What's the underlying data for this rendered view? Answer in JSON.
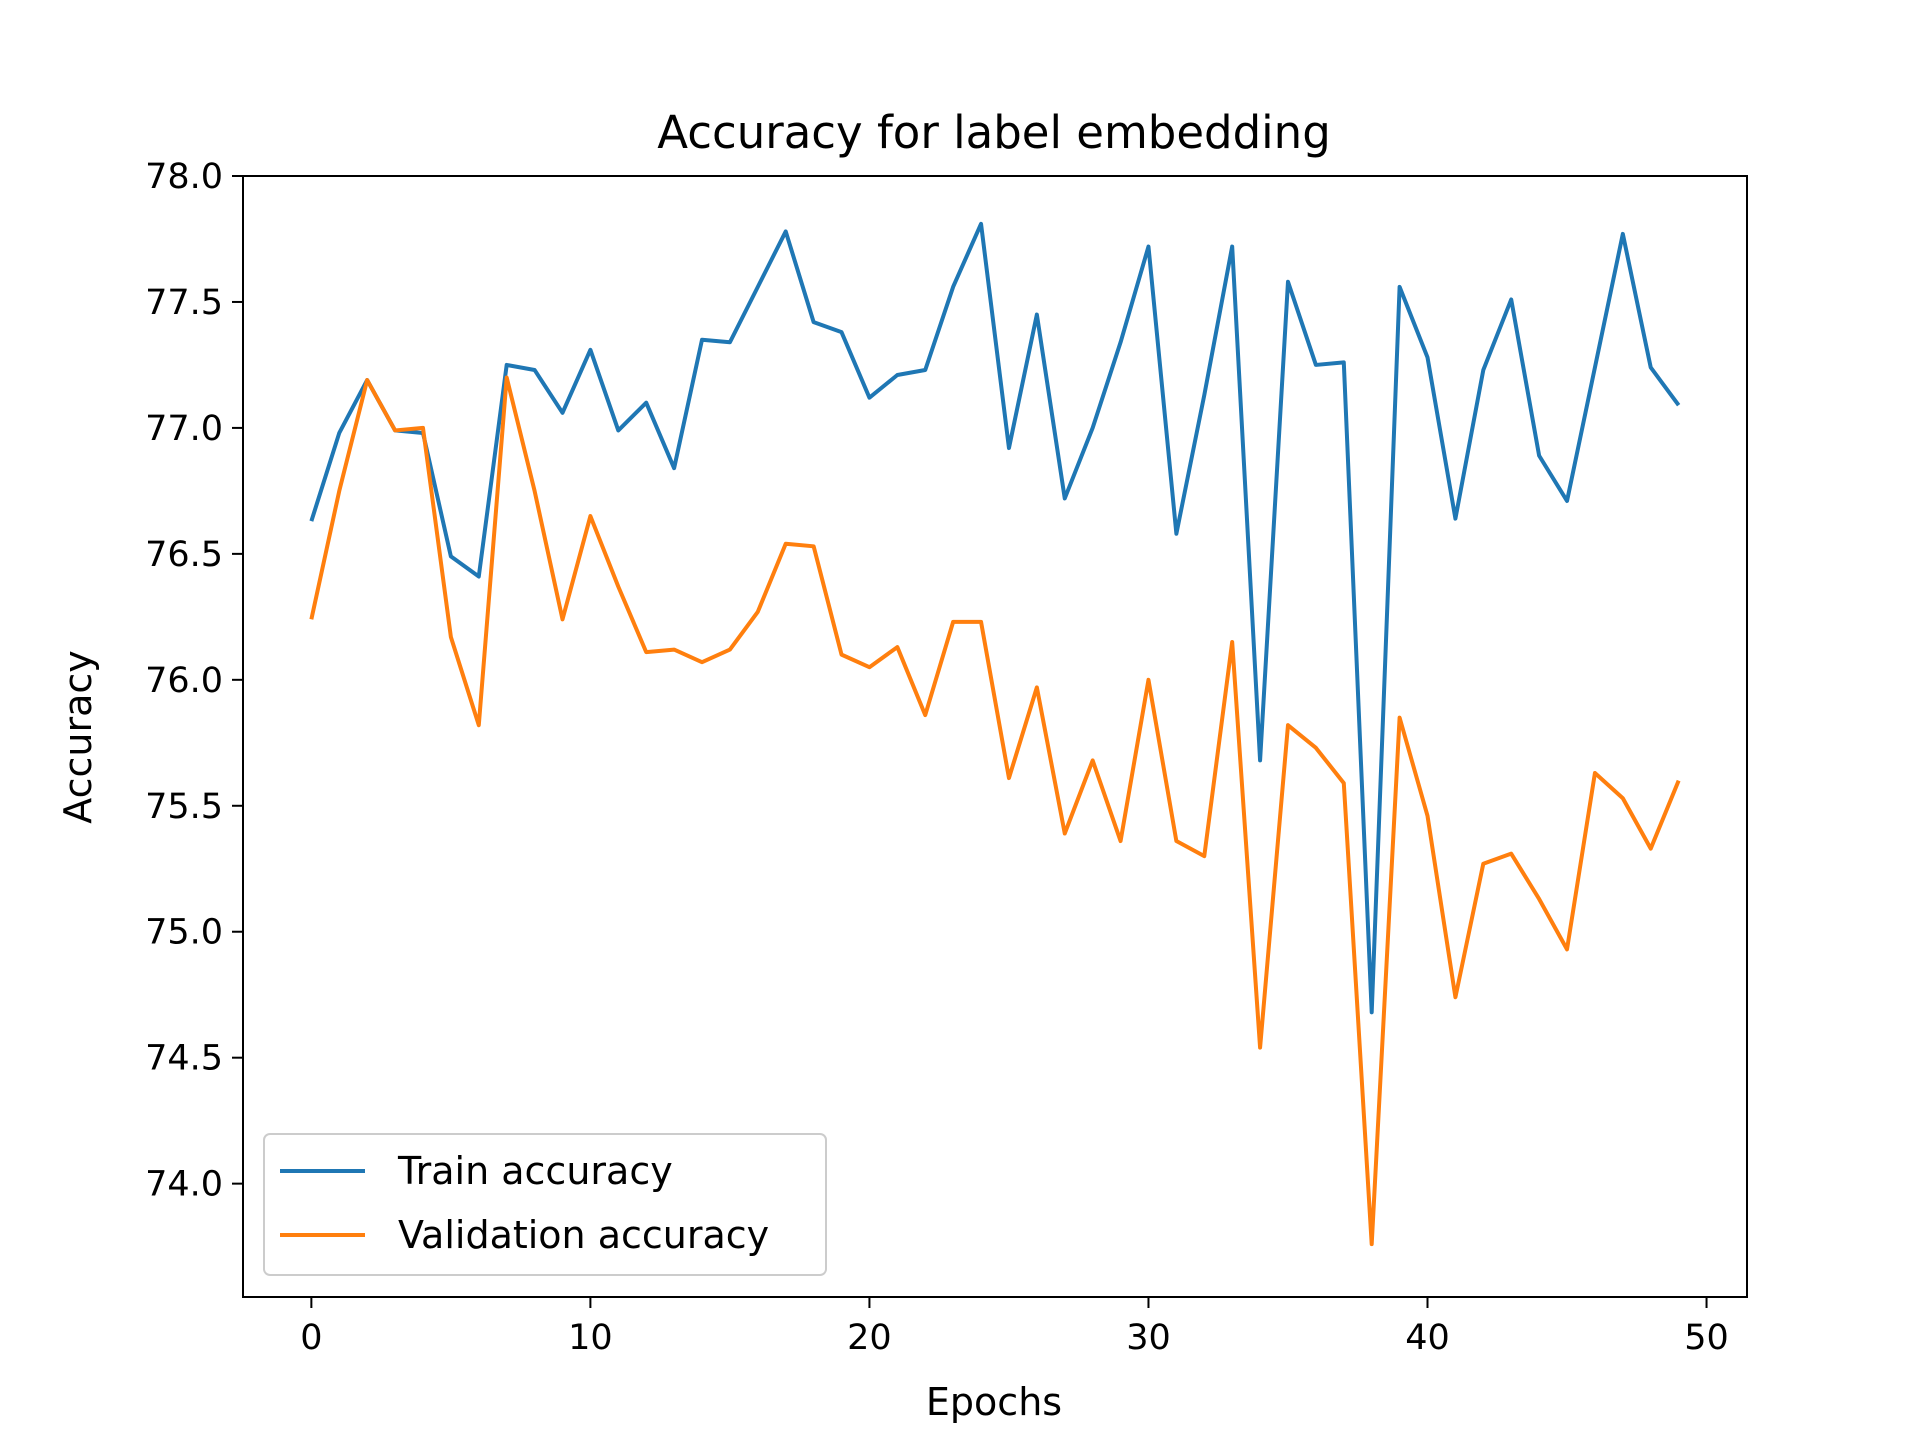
{
  "chart_data": {
    "type": "line",
    "title": "Accuracy for label embedding",
    "xlabel": "Epochs",
    "ylabel": "Accuracy",
    "xlim": [
      -2.45,
      51.45
    ],
    "ylim": [
      73.55,
      78.0
    ],
    "x_ticks": [
      0,
      10,
      20,
      30,
      40,
      50
    ],
    "y_ticks": [
      74.0,
      74.5,
      75.0,
      75.5,
      76.0,
      76.5,
      77.0,
      77.5,
      78.0
    ],
    "x_tick_labels": [
      "0",
      "10",
      "20",
      "30",
      "40",
      "50"
    ],
    "y_tick_labels": [
      "74.0",
      "74.5",
      "75.0",
      "75.5",
      "76.0",
      "76.5",
      "77.0",
      "77.5",
      "78.0"
    ],
    "grid": false,
    "legend_position": "lower-left",
    "x": [
      0,
      1,
      2,
      3,
      4,
      5,
      6,
      7,
      8,
      9,
      10,
      11,
      12,
      13,
      14,
      15,
      16,
      17,
      18,
      19,
      20,
      21,
      22,
      23,
      24,
      25,
      26,
      27,
      28,
      29,
      30,
      31,
      32,
      33,
      34,
      35,
      36,
      37,
      38,
      39,
      40,
      41,
      42,
      43,
      44,
      45,
      46,
      47,
      48,
      49
    ],
    "series": [
      {
        "name": "Train accuracy",
        "color": "#1f77b4",
        "values": [
          76.63,
          76.98,
          77.19,
          76.99,
          76.98,
          76.49,
          76.41,
          77.25,
          77.23,
          77.06,
          77.31,
          76.99,
          77.1,
          76.84,
          77.35,
          77.34,
          77.56,
          77.78,
          77.42,
          77.38,
          77.12,
          77.21,
          77.23,
          77.56,
          77.81,
          76.92,
          77.45,
          76.72,
          77.0,
          77.34,
          77.72,
          76.58,
          77.13,
          77.72,
          75.68,
          77.58,
          77.25,
          77.26,
          74.68,
          77.56,
          77.28,
          76.64,
          77.23,
          77.51,
          76.89,
          76.71,
          77.24,
          77.77,
          77.24,
          77.09
        ]
      },
      {
        "name": "Validation accuracy",
        "color": "#ff7f0e",
        "values": [
          76.24,
          76.75,
          77.19,
          76.99,
          77.0,
          76.17,
          75.82,
          77.2,
          76.75,
          76.24,
          76.65,
          76.37,
          76.11,
          76.12,
          76.07,
          76.12,
          76.27,
          76.54,
          76.53,
          76.1,
          76.05,
          76.13,
          75.86,
          76.23,
          76.23,
          75.61,
          75.97,
          75.39,
          75.68,
          75.36,
          76.0,
          75.36,
          75.3,
          76.15,
          74.54,
          75.82,
          75.73,
          75.59,
          73.76,
          75.85,
          75.46,
          74.74,
          75.27,
          75.31,
          75.13,
          74.93,
          75.63,
          75.53,
          75.33,
          75.6
        ]
      }
    ]
  }
}
